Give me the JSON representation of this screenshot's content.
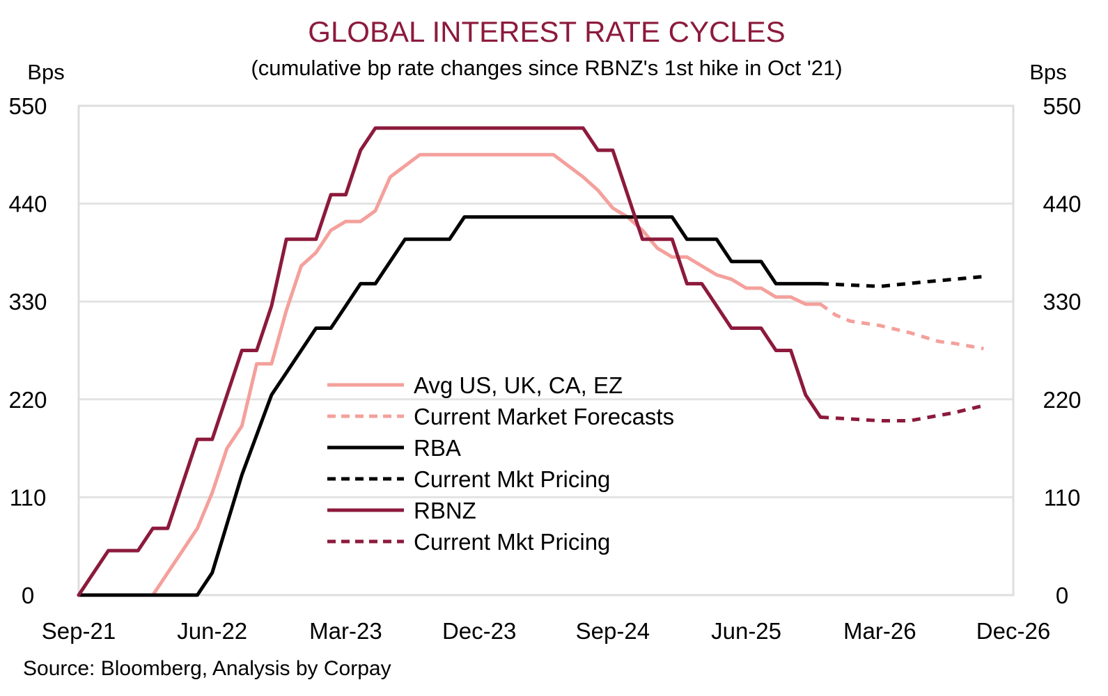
{
  "chart_data": {
    "type": "line",
    "title": "GLOBAL INTEREST RATE CYCLES",
    "subtitle": "(cumulative bp rate changes since RBNZ's 1st hike in Oct '21)",
    "ylabel_left": "Bps",
    "ylabel_right": "Bps",
    "ylim": [
      0,
      550
    ],
    "yticks": [
      0,
      110,
      220,
      330,
      440,
      550
    ],
    "x_unit": "months since Sep-21",
    "xlim": [
      0,
      63
    ],
    "xticks": [
      {
        "m": 0,
        "label": "Sep-21"
      },
      {
        "m": 9,
        "label": "Jun-22"
      },
      {
        "m": 18,
        "label": "Mar-23"
      },
      {
        "m": 27,
        "label": "Dec-23"
      },
      {
        "m": 36,
        "label": "Sep-24"
      },
      {
        "m": 45,
        "label": "Jun-25"
      },
      {
        "m": 54,
        "label": "Mar-26"
      },
      {
        "m": 63,
        "label": "Dec-26"
      }
    ],
    "grid": true,
    "legend_position": "center",
    "source": "Source: Bloomberg, Analysis by Corpay",
    "series": [
      {
        "name": "Avg US, UK, CA, EZ",
        "color": "#f4a09c",
        "dashed": false,
        "points": [
          [
            5,
            0
          ],
          [
            6,
            25
          ],
          [
            7,
            50
          ],
          [
            8,
            75
          ],
          [
            9,
            115
          ],
          [
            10,
            165
          ],
          [
            11,
            190
          ],
          [
            12,
            260
          ],
          [
            13,
            260
          ],
          [
            14,
            320
          ],
          [
            15,
            370
          ],
          [
            16,
            385
          ],
          [
            17,
            410
          ],
          [
            18,
            420
          ],
          [
            19,
            420
          ],
          [
            20,
            432
          ],
          [
            21,
            470
          ],
          [
            23,
            495
          ],
          [
            32,
            495
          ],
          [
            34,
            470
          ],
          [
            35,
            455
          ],
          [
            36,
            435
          ],
          [
            37,
            425
          ],
          [
            38,
            410
          ],
          [
            39,
            390
          ],
          [
            40,
            380
          ],
          [
            41,
            380
          ],
          [
            42,
            370
          ],
          [
            43,
            360
          ],
          [
            44,
            355
          ],
          [
            45,
            345
          ],
          [
            46,
            345
          ],
          [
            47,
            335
          ],
          [
            48,
            335
          ],
          [
            49,
            327
          ],
          [
            50,
            327
          ]
        ]
      },
      {
        "name": "Current Market Forecasts",
        "color": "#f4a09c",
        "dashed": true,
        "points": [
          [
            50,
            327
          ],
          [
            51,
            315
          ],
          [
            52,
            308
          ],
          [
            54,
            303
          ],
          [
            56,
            295
          ],
          [
            58,
            285
          ],
          [
            59,
            283
          ],
          [
            61,
            277
          ]
        ]
      },
      {
        "name": "RBA",
        "color": "#000000",
        "dashed": false,
        "points": [
          [
            0,
            0
          ],
          [
            8,
            0
          ],
          [
            9,
            25
          ],
          [
            10,
            80
          ],
          [
            11,
            135
          ],
          [
            13,
            225
          ],
          [
            14,
            250
          ],
          [
            15,
            275
          ],
          [
            16,
            300
          ],
          [
            17,
            300
          ],
          [
            18,
            325
          ],
          [
            19,
            350
          ],
          [
            20,
            350
          ],
          [
            22,
            400
          ],
          [
            25,
            400
          ],
          [
            26,
            425
          ],
          [
            40,
            425
          ],
          [
            41,
            400
          ],
          [
            43,
            400
          ],
          [
            44,
            375
          ],
          [
            46,
            375
          ],
          [
            47,
            350
          ],
          [
            50,
            350
          ]
        ]
      },
      {
        "name": "Current Mkt Pricing",
        "color": "#000000",
        "dashed": true,
        "points": [
          [
            50,
            350
          ],
          [
            54,
            347
          ],
          [
            57,
            352
          ],
          [
            61,
            358
          ]
        ]
      },
      {
        "name": "RBNZ",
        "color": "#8c1a3c",
        "dashed": false,
        "points": [
          [
            0,
            0
          ],
          [
            2,
            50
          ],
          [
            4,
            50
          ],
          [
            5,
            75
          ],
          [
            6,
            75
          ],
          [
            8,
            175
          ],
          [
            9,
            175
          ],
          [
            11,
            275
          ],
          [
            12,
            275
          ],
          [
            13,
            325
          ],
          [
            14,
            400
          ],
          [
            16,
            400
          ],
          [
            17,
            450
          ],
          [
            18,
            450
          ],
          [
            19,
            500
          ],
          [
            20,
            525
          ],
          [
            34,
            525
          ],
          [
            35,
            500
          ],
          [
            36,
            500
          ],
          [
            38,
            400
          ],
          [
            40,
            400
          ],
          [
            41,
            350
          ],
          [
            42,
            350
          ],
          [
            44,
            300
          ],
          [
            46,
            300
          ],
          [
            47,
            275
          ],
          [
            48,
            275
          ],
          [
            49,
            225
          ],
          [
            50,
            200
          ]
        ]
      },
      {
        "name": "Current Mkt Pricing",
        "color": "#8c1a3c",
        "dashed": true,
        "points": [
          [
            50,
            200
          ],
          [
            54,
            196
          ],
          [
            56,
            196
          ],
          [
            59,
            205
          ],
          [
            61,
            213
          ]
        ]
      }
    ]
  }
}
